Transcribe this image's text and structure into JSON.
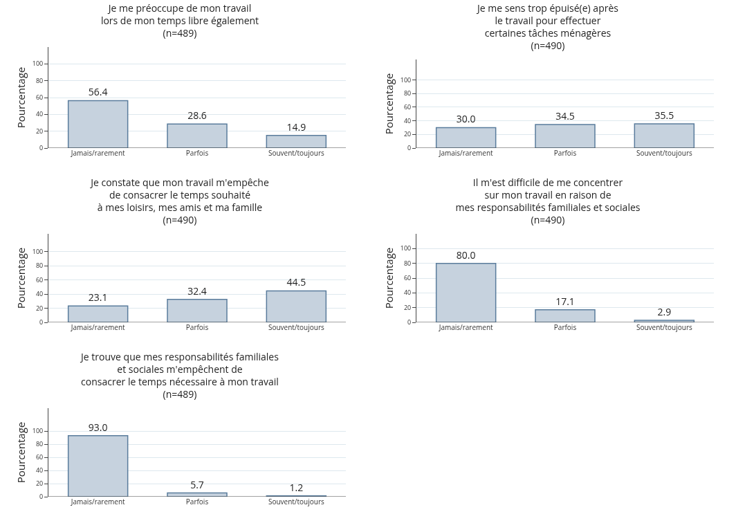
{
  "chart_data": [
    {
      "type": "bar",
      "title": "Je me préoccupe de mon travail\nlors de mon temps libre également\n(n=489)",
      "ylabel": "Pourcentage",
      "categories": [
        "Jamais/rarement",
        "Parfois",
        "Souvent/toujours"
      ],
      "values": [
        56.4,
        28.6,
        14.9
      ],
      "value_labels": [
        "56.4",
        "28.6",
        "14.9"
      ],
      "color": "#c6d2de",
      "ylim": [
        0,
        120
      ],
      "yticks": [
        0,
        20,
        40,
        60,
        80,
        100
      ],
      "grid": "y"
    },
    {
      "type": "bar",
      "title": "Je me sens trop épuisé(e) après\nle travail pour effectuer\ncertaines tâches ménagères\n(n=490)",
      "ylabel": "Pourcentage",
      "categories": [
        "Jamais/rarement",
        "Parfois",
        "Souvent/toujours"
      ],
      "values": [
        30.0,
        34.5,
        35.5
      ],
      "value_labels": [
        "30.0",
        "34.5",
        "35.5"
      ],
      "color": "#c6d2de",
      "ylim": [
        0,
        130
      ],
      "yticks": [
        0,
        20,
        40,
        60,
        80,
        100
      ],
      "grid": "y"
    },
    {
      "type": "bar",
      "title": "Je constate que mon travail m'empêche\nde consacrer le temps souhaité\nà mes loisirs, mes amis et ma famille\n(n=490)",
      "ylabel": "Pourcentage",
      "categories": [
        "Jamais/rarement",
        "Parfois",
        "Souvent/toujours"
      ],
      "values": [
        23.1,
        32.4,
        44.5
      ],
      "value_labels": [
        "23.1",
        "32.4",
        "44.5"
      ],
      "color": "#c6d2de",
      "ylim": [
        0,
        125
      ],
      "yticks": [
        0,
        20,
        40,
        60,
        80,
        100
      ],
      "grid": "y"
    },
    {
      "type": "bar",
      "title": "Il m'est difficile de me concentrer\nsur mon travail en raison de\nmes responsabilités familiales et sociales\n(n=490)",
      "ylabel": "Pourcentage",
      "categories": [
        "Jamais/rarement",
        "Parfois",
        "Souvent/toujours"
      ],
      "values": [
        80.0,
        17.1,
        2.9
      ],
      "value_labels": [
        "80.0",
        "17.1",
        "2.9"
      ],
      "color": "#c6d2de",
      "ylim": [
        0,
        120
      ],
      "yticks": [
        0,
        20,
        40,
        60,
        80,
        100
      ],
      "grid": "y"
    },
    {
      "type": "bar",
      "title": "Je trouve que mes responsabilités familiales\net sociales m'empêchent de\nconsacrer le temps nécessaire à mon travail\n(n=489)",
      "ylabel": "Pourcentage",
      "categories": [
        "Jamais/rarement",
        "Parfois",
        "Souvent/toujours"
      ],
      "values": [
        93.0,
        5.7,
        1.2
      ],
      "value_labels": [
        "93.0",
        "5.7",
        "1.2"
      ],
      "color": "#c6d2de",
      "ylim": [
        0,
        135
      ],
      "yticks": [
        0,
        20,
        40,
        60,
        80,
        100
      ],
      "grid": "y"
    }
  ]
}
